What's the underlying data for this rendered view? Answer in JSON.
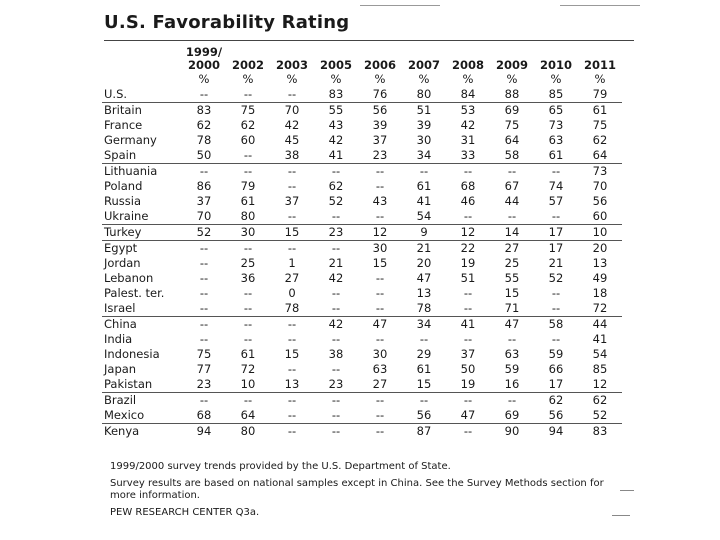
{
  "title": "U.S. Favorability Rating",
  "columns": [
    "1999/\n2000",
    "2002",
    "2003",
    "2005",
    "2006",
    "2007",
    "2008",
    "2009",
    "2010",
    "2011"
  ],
  "percent_row": [
    "%",
    "%",
    "%",
    "%",
    "%",
    "%",
    "%",
    "%",
    "%",
    "%"
  ],
  "rows": [
    {
      "country": "U.S.",
      "values": [
        "--",
        "--",
        "--",
        "83",
        "76",
        "80",
        "84",
        "88",
        "85",
        "79"
      ],
      "group_start": false
    },
    {
      "country": "Britain",
      "values": [
        "83",
        "75",
        "70",
        "55",
        "56",
        "51",
        "53",
        "69",
        "65",
        "61"
      ],
      "group_start": true
    },
    {
      "country": "France",
      "values": [
        "62",
        "62",
        "42",
        "43",
        "39",
        "39",
        "42",
        "75",
        "73",
        "75"
      ],
      "group_start": false
    },
    {
      "country": "Germany",
      "values": [
        "78",
        "60",
        "45",
        "42",
        "37",
        "30",
        "31",
        "64",
        "63",
        "62"
      ],
      "group_start": false
    },
    {
      "country": "Spain",
      "values": [
        "50",
        "--",
        "38",
        "41",
        "23",
        "34",
        "33",
        "58",
        "61",
        "64"
      ],
      "group_start": false
    },
    {
      "country": "Lithuania",
      "values": [
        "--",
        "--",
        "--",
        "--",
        "--",
        "--",
        "--",
        "--",
        "--",
        "73"
      ],
      "group_start": true
    },
    {
      "country": "Poland",
      "values": [
        "86",
        "79",
        "--",
        "62",
        "--",
        "61",
        "68",
        "67",
        "74",
        "70"
      ],
      "group_start": false
    },
    {
      "country": "Russia",
      "values": [
        "37",
        "61",
        "37",
        "52",
        "43",
        "41",
        "46",
        "44",
        "57",
        "56"
      ],
      "group_start": false
    },
    {
      "country": "Ukraine",
      "values": [
        "70",
        "80",
        "--",
        "--",
        "--",
        "54",
        "--",
        "--",
        "--",
        "60"
      ],
      "group_start": false
    },
    {
      "country": "Turkey",
      "values": [
        "52",
        "30",
        "15",
        "23",
        "12",
        "9",
        "12",
        "14",
        "17",
        "10"
      ],
      "group_start": true
    },
    {
      "country": "Egypt",
      "values": [
        "--",
        "--",
        "--",
        "--",
        "30",
        "21",
        "22",
        "27",
        "17",
        "20"
      ],
      "group_start": true
    },
    {
      "country": "Jordan",
      "values": [
        "--",
        "25",
        "1",
        "21",
        "15",
        "20",
        "19",
        "25",
        "21",
        "13"
      ],
      "group_start": false
    },
    {
      "country": "Lebanon",
      "values": [
        "--",
        "36",
        "27",
        "42",
        "--",
        "47",
        "51",
        "55",
        "52",
        "49"
      ],
      "group_start": false
    },
    {
      "country": "Palest. ter.",
      "values": [
        "--",
        "--",
        "0",
        "--",
        "--",
        "13",
        "--",
        "15",
        "--",
        "18"
      ],
      "group_start": false
    },
    {
      "country": "Israel",
      "values": [
        "--",
        "--",
        "78",
        "--",
        "--",
        "78",
        "--",
        "71",
        "--",
        "72"
      ],
      "group_start": false
    },
    {
      "country": "China",
      "values": [
        "--",
        "--",
        "--",
        "42",
        "47",
        "34",
        "41",
        "47",
        "58",
        "44"
      ],
      "group_start": true
    },
    {
      "country": "India",
      "values": [
        "--",
        "--",
        "--",
        "--",
        "--",
        "--",
        "--",
        "--",
        "--",
        "41"
      ],
      "group_start": false
    },
    {
      "country": "Indonesia",
      "values": [
        "75",
        "61",
        "15",
        "38",
        "30",
        "29",
        "37",
        "63",
        "59",
        "54"
      ],
      "group_start": false
    },
    {
      "country": "Japan",
      "values": [
        "77",
        "72",
        "--",
        "--",
        "63",
        "61",
        "50",
        "59",
        "66",
        "85"
      ],
      "group_start": false
    },
    {
      "country": "Pakistan",
      "values": [
        "23",
        "10",
        "13",
        "23",
        "27",
        "15",
        "19",
        "16",
        "17",
        "12"
      ],
      "group_start": false
    },
    {
      "country": "Brazil",
      "values": [
        "--",
        "--",
        "--",
        "--",
        "--",
        "--",
        "--",
        "--",
        "62",
        "62"
      ],
      "group_start": true
    },
    {
      "country": "Mexico",
      "values": [
        "68",
        "64",
        "--",
        "--",
        "--",
        "56",
        "47",
        "69",
        "56",
        "52"
      ],
      "group_start": false
    },
    {
      "country": "Kenya",
      "values": [
        "94",
        "80",
        "--",
        "--",
        "--",
        "87",
        "--",
        "90",
        "94",
        "83"
      ],
      "group_start": true
    }
  ],
  "notes": {
    "note1": "1999/2000 survey trends provided by the U.S. Department of State.",
    "note2": "Survey results are based on national samples except in China.  See the Survey Methods section for more information.",
    "source": "PEW RESEARCH CENTER Q3a."
  }
}
